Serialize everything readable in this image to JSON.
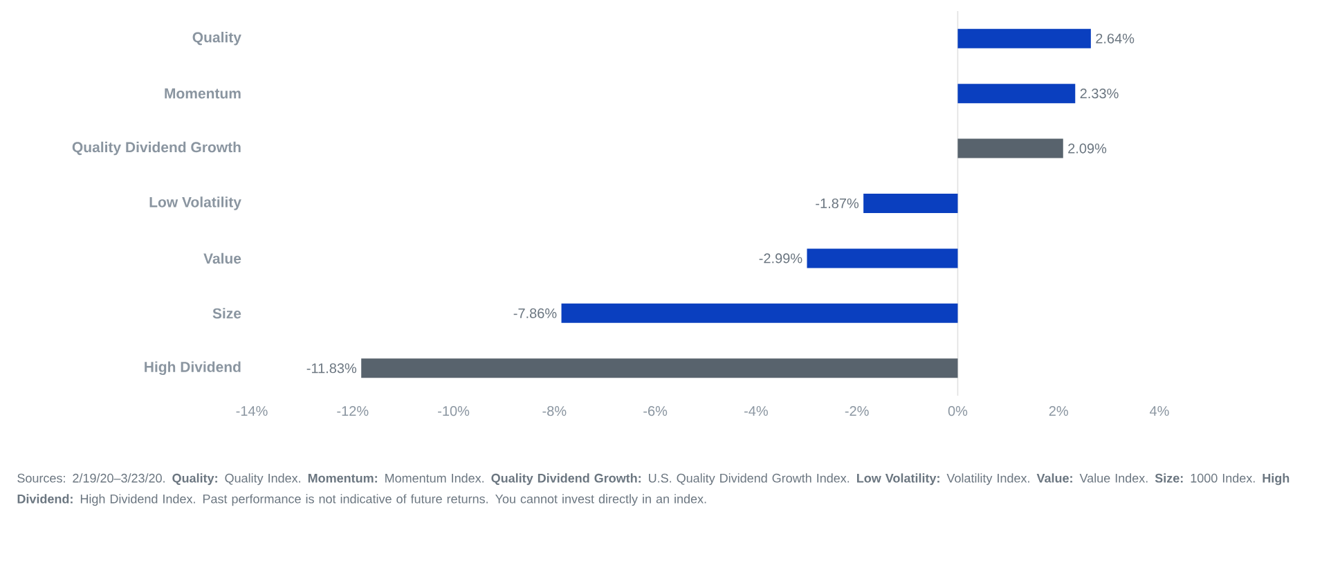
{
  "chart_data": {
    "type": "bar",
    "orientation": "horizontal",
    "categories": [
      "Quality",
      "Momentum",
      "Quality Dividend Growth",
      "Low Volatility",
      "Value",
      "Size",
      "High Dividend"
    ],
    "values": [
      2.64,
      2.33,
      2.09,
      -1.87,
      -2.99,
      -7.86,
      -11.83
    ],
    "colors": [
      "#0a3fbf",
      "#0a3fbf",
      "#58636d",
      "#0a3fbf",
      "#0a3fbf",
      "#0a3fbf",
      "#58636d"
    ],
    "value_labels": [
      "2.64%",
      "2.33%",
      "2.09%",
      "-1.87%",
      "-2.99%",
      "-7.86%",
      "-11.83%"
    ],
    "xlim": [
      -14,
      4
    ],
    "xticks": [
      {
        "value": -14,
        "label": "-14%"
      },
      {
        "value": -12,
        "label": "-12%"
      },
      {
        "value": -10,
        "label": "-10%"
      },
      {
        "value": -8,
        "label": "-8%"
      },
      {
        "value": -6,
        "label": "-6%"
      },
      {
        "value": -4,
        "label": "-4%"
      },
      {
        "value": -2,
        "label": "-2%"
      },
      {
        "value": 0,
        "label": "0%"
      },
      {
        "value": 2,
        "label": "2%"
      },
      {
        "value": 4,
        "label": "4%"
      }
    ],
    "annotations": [
      "Sources: 2/19/20–3/23/20. **Quality:** Quality Index. **Momentum:** Momentum Index. **Quality Dividend Growth:** U.S. Quality Dividend Growth Index. **Low Volatility:** Volatility Index. **Value:** Value Index. **Size:** 1000 Index. **High Dividend:** High Dividend Index. Past performance is not indicative of future returns. You cannot invest directly in an index."
    ]
  }
}
